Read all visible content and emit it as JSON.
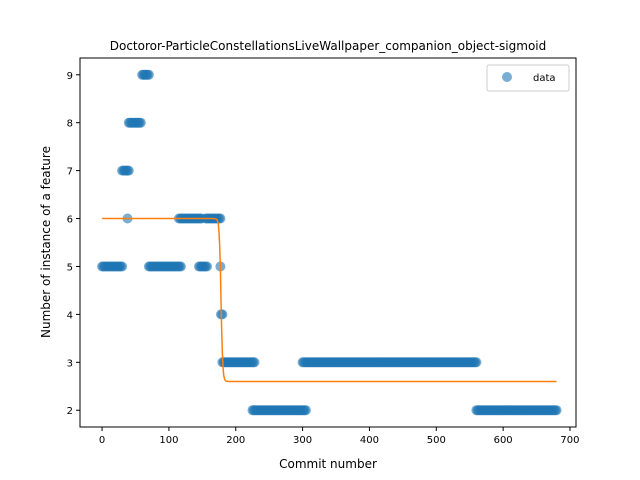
{
  "chart_data": {
    "type": "scatter",
    "title": "Doctoror-ParticleConstellationsLiveWallpaper_companion_object-sigmoid",
    "xlabel": "Commit number",
    "ylabel": "Number of instance of a feature",
    "xlim": [
      -33,
      709
    ],
    "ylim": [
      1.65,
      9.35
    ],
    "xticks": [
      0,
      100,
      200,
      300,
      400,
      500,
      600,
      700
    ],
    "yticks": [
      2,
      3,
      4,
      5,
      6,
      7,
      8,
      9
    ],
    "legend": {
      "entries": [
        "data"
      ],
      "placement": "top-right"
    },
    "colors": {
      "data": "#1f77b4",
      "fit": "#ff7f0e"
    },
    "series": [
      {
        "name": "data",
        "kind": "scatter",
        "segments": [
          {
            "x": [
              0,
              30
            ],
            "y": 5
          },
          {
            "x": [
              30,
              40
            ],
            "y": 7
          },
          {
            "x": [
              38,
              38
            ],
            "y": 6
          },
          {
            "x": [
              40,
              58
            ],
            "y": 8
          },
          {
            "x": [
              60,
              70
            ],
            "y": 9
          },
          {
            "x": [
              70,
              118
            ],
            "y": 5
          },
          {
            "x": [
              115,
              150
            ],
            "y": 6
          },
          {
            "x": [
              145,
              158
            ],
            "y": 5
          },
          {
            "x": [
              155,
              178
            ],
            "y": 6
          },
          {
            "x": [
              177,
              177
            ],
            "y": 5
          },
          {
            "x": [
              178,
              180
            ],
            "y": 4
          },
          {
            "x": [
              180,
              228
            ],
            "y": 3
          },
          {
            "x": [
              225,
              305
            ],
            "y": 2
          },
          {
            "x": [
              300,
              560
            ],
            "y": 3
          },
          {
            "x": [
              560,
              680
            ],
            "y": 2
          }
        ]
      },
      {
        "name": "",
        "kind": "line",
        "sigmoid": {
          "high": 6.0,
          "low": 2.6,
          "center": 178,
          "slope": 0.8,
          "x_range": [
            0,
            680
          ]
        }
      }
    ]
  }
}
